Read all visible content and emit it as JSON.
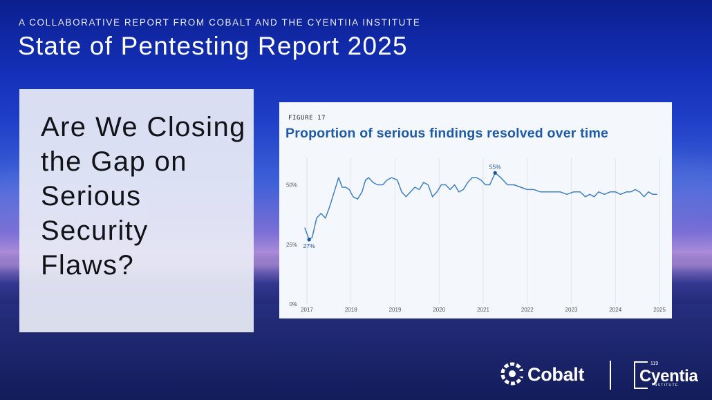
{
  "header": {
    "kicker": "A COLLABORATIVE REPORT FROM COBALT AND THE CYENTIIA INSTITUTE",
    "title": "State of Pentesting Report 2025"
  },
  "panel": {
    "question": "Are We Closing the Gap on Serious Security Flaws?"
  },
  "figure": {
    "label": "FIGURE 17",
    "title": "Proportion of serious findings resolved over time"
  },
  "chart_data": {
    "type": "line",
    "title": "Proportion of serious findings resolved over time",
    "xlabel": "",
    "ylabel": "",
    "xlim": [
      2017,
      2025
    ],
    "ylim": [
      0,
      0.6
    ],
    "y_ticks": [
      {
        "value": 0,
        "label": "0%"
      },
      {
        "value": 0.25,
        "label": "25%"
      },
      {
        "value": 0.5,
        "label": "50%"
      }
    ],
    "x_ticks": [
      "2017",
      "2018",
      "2019",
      "2020",
      "2021",
      "2022",
      "2023",
      "2024",
      "2025"
    ],
    "grid": "vertical",
    "line_color": "#3f7fc2",
    "series": [
      {
        "x": [
          2016.95,
          2017.05,
          2017.12,
          2017.22,
          2017.32,
          2017.42,
          2017.52,
          2017.62,
          2017.72,
          2017.8,
          2017.88,
          2017.96,
          2018.05,
          2018.15,
          2018.25,
          2018.33,
          2018.4,
          2018.5,
          2018.6,
          2018.72,
          2018.82,
          2018.92,
          2019.05,
          2019.15,
          2019.25,
          2019.35,
          2019.45,
          2019.55,
          2019.65,
          2019.75,
          2019.85,
          2019.95,
          2020.05,
          2020.15,
          2020.25,
          2020.35,
          2020.45,
          2020.55,
          2020.65,
          2020.75,
          2020.85,
          2020.95,
          2021.05,
          2021.15,
          2021.27,
          2021.4,
          2021.55,
          2021.7,
          2021.85,
          2022.0,
          2022.15,
          2022.3,
          2022.45,
          2022.6,
          2022.75,
          2022.9,
          2023.05,
          2023.2,
          2023.32,
          2023.42,
          2023.52,
          2023.62,
          2023.75,
          2023.88,
          2024.0,
          2024.12,
          2024.25,
          2024.35,
          2024.45,
          2024.55,
          2024.65,
          2024.75,
          2024.85,
          2024.95
        ],
        "y": [
          0.32,
          0.27,
          0.28,
          0.36,
          0.38,
          0.36,
          0.41,
          0.47,
          0.53,
          0.49,
          0.49,
          0.48,
          0.45,
          0.44,
          0.47,
          0.52,
          0.53,
          0.51,
          0.5,
          0.5,
          0.52,
          0.53,
          0.52,
          0.47,
          0.45,
          0.47,
          0.49,
          0.48,
          0.51,
          0.5,
          0.45,
          0.47,
          0.5,
          0.5,
          0.48,
          0.5,
          0.47,
          0.48,
          0.51,
          0.53,
          0.53,
          0.52,
          0.5,
          0.5,
          0.55,
          0.53,
          0.5,
          0.5,
          0.49,
          0.48,
          0.48,
          0.47,
          0.47,
          0.47,
          0.47,
          0.46,
          0.47,
          0.47,
          0.45,
          0.46,
          0.45,
          0.47,
          0.46,
          0.47,
          0.47,
          0.46,
          0.47,
          0.47,
          0.48,
          0.47,
          0.45,
          0.47,
          0.46,
          0.46
        ]
      }
    ],
    "annotations": [
      {
        "x": 2017.05,
        "y": 0.27,
        "label": "27%",
        "position": "below"
      },
      {
        "x": 2021.27,
        "y": 0.55,
        "label": "55%",
        "position": "above"
      }
    ]
  },
  "logos": {
    "cobalt": "Cobalt",
    "cyentia": "Cyentia",
    "cyentia_number": "119",
    "cyentia_sub": "INSTITUTE",
    "cobalt_icon": "cobalt-gear-icon"
  }
}
